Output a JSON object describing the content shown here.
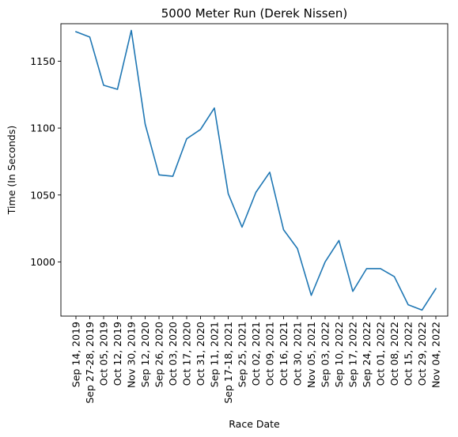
{
  "chart_data": {
    "type": "line",
    "title": "5000 Meter Run (Derek Nissen)",
    "xlabel": "Race Date",
    "ylabel": "Time (In Seconds)",
    "categories": [
      "Sep 14, 2019",
      "Sep 27-28, 2019",
      "Oct 05, 2019",
      "Oct 12, 2019",
      "Nov 30, 2019",
      "Sep 12, 2020",
      "Sep 26, 2020",
      "Oct 03, 2020",
      "Oct 17, 2020",
      "Oct 31, 2020",
      "Sep 11, 2021",
      "Sep 17-18, 2021",
      "Sep 25, 2021",
      "Oct 02, 2021",
      "Oct 09, 2021",
      "Oct 16, 2021",
      "Oct 30, 2021",
      "Nov 05, 2021",
      "Sep 03, 2022",
      "Sep 10, 2022",
      "Sep 17, 2022",
      "Sep 24, 2022",
      "Oct 01, 2022",
      "Oct 08, 2022",
      "Oct 15, 2022",
      "Oct 29, 2022",
      "Nov 04, 2022"
    ],
    "series": [
      {
        "values": [
          1172,
          1168,
          1132,
          1129,
          1173,
          1103,
          1065,
          1064,
          1092,
          1099,
          1115,
          1051,
          1026,
          1052,
          1067,
          1024,
          1010,
          975,
          1000,
          1016,
          978,
          995,
          995,
          989,
          968,
          964,
          980
        ],
        "color": "#1f77b4"
      }
    ],
    "yticks": [
      1000,
      1050,
      1100,
      1150
    ],
    "ylim": [
      959.5,
      1178
    ],
    "grid": false,
    "legend": "none"
  }
}
